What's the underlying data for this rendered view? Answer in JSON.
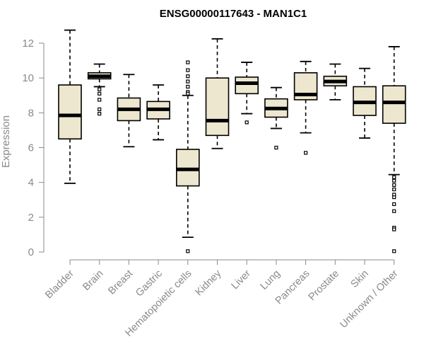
{
  "chart_data": {
    "type": "boxplot",
    "title": "ENSG00000117643 - MAN1C1",
    "xlabel": "",
    "ylabel": "Expression",
    "ylim": [
      0,
      12.5
    ],
    "yticks": [
      0,
      2,
      4,
      6,
      8,
      10,
      12
    ],
    "colors": {
      "box_fill": "#ede7cf",
      "stroke": "#000000",
      "axis": "#8a8a8a"
    },
    "series": [
      {
        "name": "Bladder",
        "min": 3.95,
        "q1": 6.5,
        "median": 7.85,
        "q3": 9.6,
        "max": 12.75,
        "outliers": []
      },
      {
        "name": "Brain",
        "min": 9.5,
        "q1": 9.95,
        "median": 10.1,
        "q3": 10.3,
        "max": 10.8,
        "outliers": [
          9.35,
          9.1,
          8.75,
          8.2,
          7.95
        ]
      },
      {
        "name": "Breast",
        "min": 6.05,
        "q1": 7.55,
        "median": 8.2,
        "q3": 8.85,
        "max": 10.2,
        "outliers": []
      },
      {
        "name": "Gastric",
        "min": 6.45,
        "q1": 7.65,
        "median": 8.2,
        "q3": 8.65,
        "max": 9.6,
        "outliers": []
      },
      {
        "name": "Hematopoietic cells",
        "min": 0.85,
        "q1": 3.8,
        "median": 4.75,
        "q3": 5.9,
        "max": 9.0,
        "outliers": [
          10.9,
          10.45,
          10.1,
          9.8,
          9.5,
          9.2,
          9.1,
          0.05
        ]
      },
      {
        "name": "Kidney",
        "min": 5.95,
        "q1": 6.7,
        "median": 7.55,
        "q3": 10.0,
        "max": 12.25,
        "outliers": []
      },
      {
        "name": "Liver",
        "min": 7.95,
        "q1": 9.1,
        "median": 9.7,
        "q3": 10.05,
        "max": 10.9,
        "outliers": [
          7.45
        ]
      },
      {
        "name": "Lung",
        "min": 7.1,
        "q1": 7.75,
        "median": 8.25,
        "q3": 8.8,
        "max": 9.45,
        "outliers": [
          6.0
        ]
      },
      {
        "name": "Pancreas",
        "min": 6.85,
        "q1": 8.75,
        "median": 9.05,
        "q3": 10.3,
        "max": 10.95,
        "outliers": [
          5.7
        ]
      },
      {
        "name": "Prostate",
        "min": 8.75,
        "q1": 9.55,
        "median": 9.8,
        "q3": 10.1,
        "max": 10.8,
        "outliers": []
      },
      {
        "name": "Skin",
        "min": 6.55,
        "q1": 7.85,
        "median": 8.6,
        "q3": 9.5,
        "max": 10.55,
        "outliers": []
      },
      {
        "name": "Unknown / Other",
        "min": 4.45,
        "q1": 7.4,
        "median": 8.6,
        "q3": 9.55,
        "max": 11.8,
        "outliers": [
          4.3,
          4.1,
          3.85,
          3.6,
          3.3,
          3.15,
          2.75,
          2.35,
          1.4,
          1.3,
          0.05
        ]
      }
    ]
  }
}
